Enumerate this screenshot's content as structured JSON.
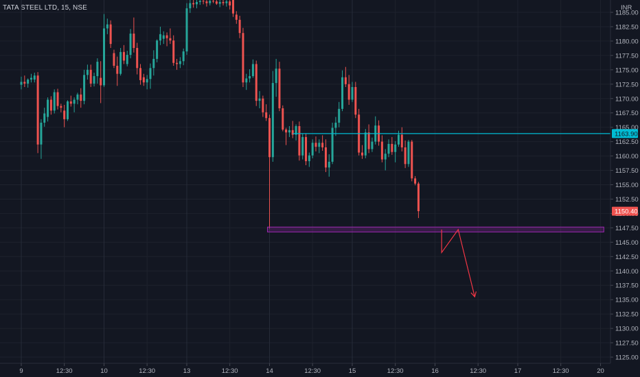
{
  "symbol_label": "TATA STEEL LTD, 15, NSE",
  "colors": {
    "background": "#131722",
    "grid": "#1e222d",
    "bull": "#26a69a",
    "bear": "#ef5350",
    "hline": "#00bcd4",
    "zone": "#9c27b0",
    "arrow": "#f23645",
    "axis_text": "#b2b5be"
  },
  "chart_data": {
    "type": "candlestick",
    "title": "",
    "currency": "INR",
    "ylim": [
      1123.6,
      1186.6
    ],
    "y_ticks": [
      "1185.00",
      "1182.50",
      "1180.00",
      "1177.50",
      "1175.00",
      "1172.50",
      "1170.00",
      "1167.50",
      "1165.00",
      "1162.50",
      "1160.00",
      "1157.50",
      "1155.00",
      "1152.50",
      "1150.00",
      "1147.50",
      "1145.00",
      "1142.50",
      "1140.00",
      "1137.50",
      "1135.00",
      "1132.50",
      "1130.00",
      "1127.50",
      "1125.00"
    ],
    "x_ticks": [
      {
        "label": "9",
        "bar": 0
      },
      {
        "label": "12:30",
        "bar": 13
      },
      {
        "label": "10",
        "bar": 25
      },
      {
        "label": "12:30",
        "bar": 38
      },
      {
        "label": "13",
        "bar": 50
      },
      {
        "label": "12:30",
        "bar": 63
      },
      {
        "label": "14",
        "bar": 75
      },
      {
        "label": "12:30",
        "bar": 88
      },
      {
        "label": "15",
        "bar": 100
      },
      {
        "label": "12:30",
        "bar": 113
      },
      {
        "label": "16",
        "bar": 125
      },
      {
        "label": "12:30",
        "bar": 138
      },
      {
        "label": "17",
        "bar": 150
      },
      {
        "label": "12:30",
        "bar": 163
      },
      {
        "label": "20",
        "bar": 175
      }
    ],
    "day_separators": [
      0,
      25,
      50,
      75,
      100
    ],
    "candles": [
      [
        1172.4,
        1173.8,
        1171.6,
        1172.9
      ],
      [
        1172.9,
        1174.0,
        1172.0,
        1172.6
      ],
      [
        1172.6,
        1173.5,
        1171.9,
        1173.3
      ],
      [
        1173.3,
        1174.3,
        1172.8,
        1173.6
      ],
      [
        1173.3,
        1174.5,
        1172.8,
        1174.0
      ],
      [
        1174.0,
        1174.6,
        1160.5,
        1162.0
      ],
      [
        1162.0,
        1166.4,
        1159.5,
        1165.8
      ],
      [
        1165.8,
        1168.4,
        1165.1,
        1167.4
      ],
      [
        1166.8,
        1170.2,
        1166.0,
        1169.8
      ],
      [
        1169.8,
        1170.4,
        1167.2,
        1167.9
      ],
      [
        1167.9,
        1171.6,
        1167.4,
        1171.1
      ],
      [
        1171.1,
        1171.7,
        1168.1,
        1168.7
      ],
      [
        1168.7,
        1169.1,
        1167.6,
        1168.4
      ],
      [
        1167.9,
        1168.9,
        1165.0,
        1166.4
      ],
      [
        1166.4,
        1169.7,
        1166.1,
        1169.5
      ],
      [
        1169.5,
        1170.5,
        1168.6,
        1169.1
      ],
      [
        1169.1,
        1170.2,
        1167.6,
        1169.8
      ],
      [
        1169.8,
        1171.0,
        1169.0,
        1170.7
      ],
      [
        1170.7,
        1171.8,
        1168.4,
        1169.6
      ],
      [
        1169.6,
        1175.0,
        1169.0,
        1174.1
      ],
      [
        1174.1,
        1175.9,
        1173.3,
        1175.0
      ],
      [
        1175.0,
        1175.9,
        1172.0,
        1172.6
      ],
      [
        1172.6,
        1174.5,
        1172.1,
        1173.9
      ],
      [
        1173.9,
        1177.0,
        1172.6,
        1176.4
      ],
      [
        1173.6,
        1176.5,
        1169.2,
        1172.3
      ],
      [
        1172.3,
        1184.7,
        1172.0,
        1182.2
      ],
      [
        1182.2,
        1183.9,
        1181.2,
        1182.9
      ],
      [
        1182.9,
        1183.6,
        1178.8,
        1179.5
      ],
      [
        1177.9,
        1178.5,
        1175.3,
        1175.7
      ],
      [
        1175.7,
        1177.3,
        1172.2,
        1174.3
      ],
      [
        1174.3,
        1178.8,
        1174.0,
        1178.1
      ],
      [
        1178.1,
        1179.3,
        1176.0,
        1176.6
      ],
      [
        1176.0,
        1178.3,
        1175.6,
        1177.6
      ],
      [
        1177.6,
        1182.1,
        1177.0,
        1181.3
      ],
      [
        1181.3,
        1184.1,
        1178.0,
        1178.8
      ],
      [
        1178.8,
        1179.7,
        1174.2,
        1175.3
      ],
      [
        1175.3,
        1176.0,
        1172.4,
        1173.2
      ],
      [
        1173.7,
        1174.3,
        1172.2,
        1172.8
      ],
      [
        1172.8,
        1174.1,
        1171.6,
        1173.4
      ],
      [
        1173.4,
        1176.1,
        1171.7,
        1175.3
      ],
      [
        1175.3,
        1178.4,
        1174.0,
        1176.9
      ],
      [
        1176.9,
        1180.3,
        1176.3,
        1180.1
      ],
      [
        1180.1,
        1182.5,
        1179.3,
        1181.2
      ],
      [
        1180.4,
        1181.7,
        1179.5,
        1181.0
      ],
      [
        1181.0,
        1181.5,
        1179.1,
        1180.5
      ],
      [
        1180.5,
        1182.2,
        1179.5,
        1180.1
      ],
      [
        1180.1,
        1181.0,
        1175.7,
        1176.2
      ],
      [
        1176.2,
        1176.9,
        1175.0,
        1176.0
      ],
      [
        1176.0,
        1177.2,
        1175.3,
        1176.5
      ],
      [
        1176.5,
        1178.7,
        1175.8,
        1178.2
      ],
      [
        1178.2,
        1186.6,
        1177.6,
        1185.7
      ],
      [
        1185.7,
        1187.4,
        1184.9,
        1186.6
      ],
      [
        1186.6,
        1187.4,
        1185.8,
        1186.4
      ],
      [
        1186.4,
        1187.4,
        1185.7,
        1186.8
      ],
      [
        1186.8,
        1187.4,
        1186.3,
        1187.0
      ],
      [
        1187.0,
        1187.4,
        1186.4,
        1186.9
      ],
      [
        1186.9,
        1187.4,
        1186.0,
        1186.6
      ],
      [
        1186.6,
        1187.4,
        1186.2,
        1187.0
      ],
      [
        1187.0,
        1187.4,
        1186.6,
        1186.9
      ],
      [
        1186.9,
        1187.4,
        1186.3,
        1186.5
      ],
      [
        1186.5,
        1187.4,
        1185.9,
        1186.8
      ],
      [
        1186.8,
        1187.4,
        1186.2,
        1186.6
      ],
      [
        1186.6,
        1187.4,
        1186.0,
        1186.9
      ],
      [
        1186.9,
        1187.4,
        1185.5,
        1186.2
      ],
      [
        1187.8,
        1188.5,
        1184.2,
        1184.8
      ],
      [
        1184.6,
        1185.2,
        1183.0,
        1183.7
      ],
      [
        1183.7,
        1184.4,
        1180.5,
        1181.4
      ],
      [
        1181.4,
        1182.3,
        1172.0,
        1172.8
      ],
      [
        1172.8,
        1174.3,
        1171.5,
        1173.5
      ],
      [
        1173.5,
        1175.1,
        1172.8,
        1173.9
      ],
      [
        1173.9,
        1176.8,
        1173.6,
        1176.0
      ],
      [
        1176.0,
        1176.6,
        1168.7,
        1169.6
      ],
      [
        1169.6,
        1171.3,
        1168.3,
        1170.0
      ],
      [
        1170.0,
        1170.5,
        1166.8,
        1167.6
      ],
      [
        1167.6,
        1169.0,
        1166.1,
        1166.6
      ],
      [
        1166.6,
        1167.2,
        1147.4,
        1159.8
      ],
      [
        1159.8,
        1174.8,
        1159.0,
        1172.7
      ],
      [
        1172.7,
        1176.9,
        1170.3,
        1175.2
      ],
      [
        1175.2,
        1176.4,
        1167.8,
        1168.3
      ],
      [
        1168.3,
        1168.8,
        1164.3,
        1164.6
      ],
      [
        1164.6,
        1164.9,
        1161.9,
        1164.1
      ],
      [
        1164.1,
        1165.2,
        1163.3,
        1164.5
      ],
      [
        1164.5,
        1166.1,
        1163.1,
        1163.7
      ],
      [
        1163.7,
        1165.5,
        1162.7,
        1165.2
      ],
      [
        1165.2,
        1166.0,
        1159.2,
        1160.1
      ],
      [
        1160.1,
        1163.9,
        1159.4,
        1163.3
      ],
      [
        1163.3,
        1163.9,
        1158.4,
        1159.1
      ],
      [
        1159.1,
        1160.6,
        1158.1,
        1160.1
      ],
      [
        1160.1,
        1162.9,
        1159.6,
        1162.3
      ],
      [
        1162.3,
        1163.4,
        1160.8,
        1161.6
      ],
      [
        1161.6,
        1162.9,
        1160.5,
        1162.3
      ],
      [
        1162.3,
        1163.6,
        1160.9,
        1161.5
      ],
      [
        1161.5,
        1162.9,
        1157.2,
        1158.0
      ],
      [
        1158.0,
        1160.3,
        1156.4,
        1159.0
      ],
      [
        1159.0,
        1165.8,
        1158.6,
        1164.9
      ],
      [
        1164.9,
        1166.8,
        1163.5,
        1165.8
      ],
      [
        1165.8,
        1169.4,
        1165.0,
        1168.2
      ],
      [
        1168.2,
        1174.9,
        1167.8,
        1173.7
      ],
      [
        1173.7,
        1175.5,
        1172.0,
        1172.5
      ],
      [
        1172.5,
        1174.1,
        1168.9,
        1169.8
      ],
      [
        1169.8,
        1172.9,
        1169.4,
        1172.0
      ],
      [
        1172.0,
        1172.9,
        1166.6,
        1167.2
      ],
      [
        1167.2,
        1168.2,
        1160.1,
        1160.6
      ],
      [
        1160.6,
        1161.9,
        1159.5,
        1160.1
      ],
      [
        1160.1,
        1164.7,
        1159.6,
        1164.1
      ],
      [
        1164.1,
        1165.5,
        1160.5,
        1161.2
      ],
      [
        1161.2,
        1163.2,
        1160.7,
        1162.5
      ],
      [
        1162.5,
        1166.9,
        1162.0,
        1165.3
      ],
      [
        1165.3,
        1166.2,
        1161.8,
        1162.5
      ],
      [
        1162.5,
        1163.6,
        1158.9,
        1159.4
      ],
      [
        1159.4,
        1161.2,
        1157.5,
        1160.4
      ],
      [
        1160.4,
        1162.9,
        1159.8,
        1162.1
      ],
      [
        1162.1,
        1163.3,
        1160.2,
        1160.7
      ],
      [
        1160.7,
        1162.6,
        1158.9,
        1162.0
      ],
      [
        1162.0,
        1164.4,
        1161.6,
        1163.7
      ],
      [
        1163.7,
        1165.0,
        1160.8,
        1161.5
      ],
      [
        1161.5,
        1162.7,
        1157.9,
        1158.6
      ],
      [
        1158.6,
        1162.8,
        1158.1,
        1162.5
      ],
      [
        1162.5,
        1162.8,
        1155.6,
        1156.1
      ],
      [
        1156.1,
        1156.5,
        1154.9,
        1155.2
      ],
      [
        1155.2,
        1155.5,
        1149.2,
        1150.4
      ]
    ],
    "horizontal_line": {
      "price": 1163.9,
      "label": "1163.90"
    },
    "last_price": {
      "price": 1150.4,
      "label": "1150.40"
    },
    "support_zone": {
      "low": 1146.9,
      "high": 1147.4,
      "bar_from": 75,
      "bar_to": 176
    },
    "projection_path": [
      [
        127,
        1147.2
      ],
      [
        127,
        1143.2
      ],
      [
        132,
        1147.2
      ],
      [
        137,
        1135.5
      ]
    ]
  }
}
